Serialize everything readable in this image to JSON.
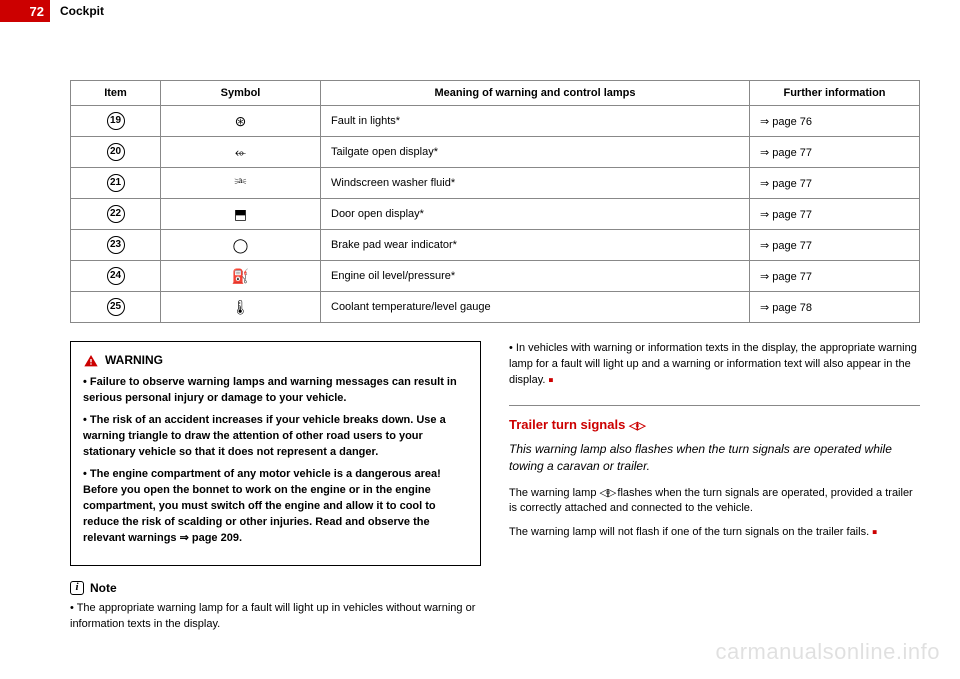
{
  "header": {
    "page_number": "72",
    "title": "Cockpit"
  },
  "table": {
    "headers": [
      "Item",
      "Symbol",
      "Meaning of warning and control lamps",
      "Further information"
    ],
    "rows": [
      {
        "item": "19",
        "symbol": "⊛",
        "meaning": "Fault in lights*",
        "ref": "⇒ page 76"
      },
      {
        "item": "20",
        "symbol": "⬰",
        "meaning": "Tailgate open display*",
        "ref": "⇒ page 77"
      },
      {
        "item": "21",
        "symbol": "⎃",
        "meaning": "Windscreen washer fluid*",
        "ref": "⇒ page 77"
      },
      {
        "item": "22",
        "symbol": "⬒",
        "meaning": "Door open display*",
        "ref": "⇒ page 77"
      },
      {
        "item": "23",
        "symbol": "◯",
        "meaning": "Brake pad wear indicator*",
        "ref": "⇒ page 77"
      },
      {
        "item": "24",
        "symbol": "⛽",
        "meaning": "Engine oil level/pressure*",
        "ref": "⇒ page 77"
      },
      {
        "item": "25",
        "symbol": "🌡",
        "meaning": "Coolant temperature/level gauge",
        "ref": "⇒ page 78"
      }
    ]
  },
  "warning": {
    "heading": "WARNING",
    "bullets": [
      "Failure to observe warning lamps and warning messages can result in serious personal injury or damage to your vehicle.",
      "The risk of an accident increases if your vehicle breaks down. Use a warning triangle to draw the attention of other road users to your stationary vehicle so that it does not represent a danger.",
      "The engine compartment of any motor vehicle is a dangerous area! Before you open the bonnet to work on the engine or in the engine compartment, you must switch off the engine and allow it to cool to reduce the risk of scalding or other injuries. Read and observe the relevant warnings ⇒ page 209."
    ]
  },
  "note": {
    "heading": "Note",
    "bullets": [
      "The appropriate warning lamp for a fault will light up in vehicles without warning or information texts in the display."
    ]
  },
  "right_col": {
    "top_bullet": "In vehicles with warning or information texts in the display, the appropriate warning lamp for a fault will light up and a warning or information text will also appear in the display.",
    "section_title": "Trailer turn signals ",
    "section_sub": "This warning lamp also flashes when the turn signals are operated while towing a caravan or trailer.",
    "body1": "The warning lamp  flashes when the turn signals are operated, provided a trailer is correctly attached and connected to the vehicle.",
    "body2": "The warning lamp will not flash if one of the turn signals on the trailer fails."
  },
  "watermark": "carmanualsonline.info",
  "colors": {
    "accent": "#c00",
    "border": "#888",
    "watermark": "rgba(0,0,0,0.12)"
  }
}
